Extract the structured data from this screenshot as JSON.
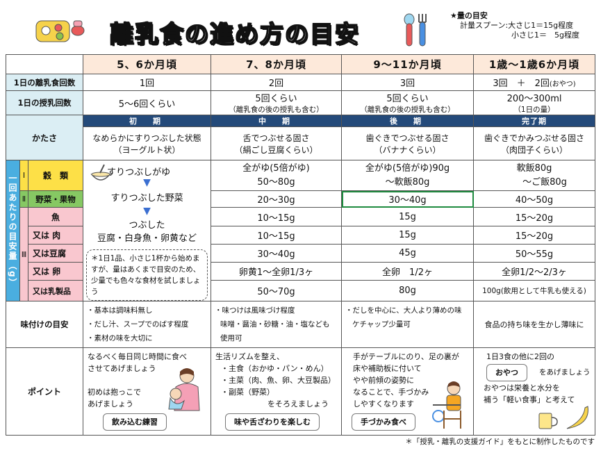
{
  "header": {
    "title": "離乳食の進め方の目安",
    "note_title": "★量の目安",
    "note_line1": "計量スプーン:大さじ1＝15g程度",
    "note_line2": "小さじ1＝　5g程度"
  },
  "columns": [
    "5、6か月頃",
    "7、8か月頃",
    "9～11か月頃",
    "1歳～1歳6か月頃"
  ],
  "rows": {
    "meals_label": "1日の離乳食回数",
    "meals": [
      "1回",
      "2回",
      "3回",
      "3回　＋　2回"
    ],
    "meals_extra": "(おやつ)",
    "milk_label": "1日の授乳回数",
    "milk": [
      "5～6回くらい",
      "5回くらい",
      "5回くらい",
      "200～300ml"
    ],
    "milk_sub": [
      "",
      "（離乳食の後の授乳も含む）",
      "（離乳食の後の授乳も含む）",
      "（1日の量）"
    ],
    "texture_label": "かたさ",
    "stages": [
      "初　期",
      "中　期",
      "後　期",
      "完了期"
    ],
    "texture": [
      "なめらかにすりつぶした状態",
      "舌でつぶせる固さ",
      "歯ぐきでつぶせる固さ",
      "歯ぐきでかみつぶせる固さ"
    ],
    "texture_sub": [
      "（ヨーグルト状）",
      "（絹ごし豆腐くらい）",
      "（バナナくらい）",
      "（肉団子くらい）"
    ]
  },
  "amounts": {
    "side_label": "一回あたりの目安量（g）",
    "group_labels": [
      "Ⅰ",
      "Ⅱ",
      "Ⅲ"
    ],
    "items": [
      "穀　類",
      "野菜・果物",
      "魚",
      "又は 肉",
      "又は豆腐",
      "又は 卵",
      "又は乳製品"
    ],
    "early_1": "すりつぶしがゆ",
    "early_2": "すりつぶした野菜",
    "early_3a": "つぶした",
    "early_3b": "豆腐・白身魚・卵黄など",
    "early_tip": "＊1日1品、小さじ1杯から始めますが、量はあくまで目安のため、少量でも色々な食材を試しましょう",
    "grain": [
      "全がゆ(5倍がゆ)",
      "全がゆ(5倍がゆ)90g",
      "軟飯80g"
    ],
    "grain_2": [
      "50～80g",
      "～軟飯80g",
      "～ご飯80g"
    ],
    "veg": [
      "20～30g",
      "30～40g",
      "40～50g"
    ],
    "fish": [
      "10～15g",
      "15g",
      "15～20g"
    ],
    "meat": [
      "10～15g",
      "15g",
      "15～20g"
    ],
    "tofu": [
      "30～40g",
      "45g",
      "50～55g"
    ],
    "egg": [
      "卵黄1～全卵1/3ヶ",
      "全卵　1/2ヶ",
      "全卵1/2～2/3ヶ"
    ],
    "dairy": [
      "50～70g",
      "80g",
      "100g(飲用として牛乳も使える)"
    ]
  },
  "flavor": {
    "label": "味付けの目安",
    "c1": [
      "・基本は調味料無し",
      "・だし汁、スープでのばす程度",
      "・素材の味を大切に"
    ],
    "c2": [
      "・味つけは風味づけ程度",
      "味噌・醤油・砂糖・油・塩なども",
      "使用可"
    ],
    "c3": [
      "・だしを中心に、大人より薄めの味",
      "ケチャップ少量可"
    ],
    "c4": "食品の持ち味を生かし薄味に"
  },
  "point": {
    "label": "ポイント",
    "c1": [
      "なるべく毎日同じ時間に食べ",
      "させてあげましょう",
      "",
      "初めは抱っこで",
      "あげましょう"
    ],
    "c1_badge": "飲み込む練習",
    "c2": [
      "生活リズムを整え、",
      "・主食（おかゆ・パン・めん）",
      "・主菜（肉、魚、卵、大豆製品）",
      "・副菜（野菜）",
      "をそろえましょう"
    ],
    "c2_badge": "味や舌ざわりを楽しむ",
    "c3": [
      "手がテーブルにのり、足の裏が",
      "床や補助板に付いて",
      "やや前傾の姿勢に",
      "なることで、手づかみ",
      "しやすくなります"
    ],
    "c3_badge": "手づかみ食べ",
    "c4": [
      "1日3食の他に2回の",
      "をあげましょう",
      "おやつは栄養と水分を",
      "補う「軽い食事」と考えて"
    ],
    "c4_badge": "おやつ"
  },
  "footer": "＊「授乳・離乳の支援ガイド」をもとに制作したものです"
}
